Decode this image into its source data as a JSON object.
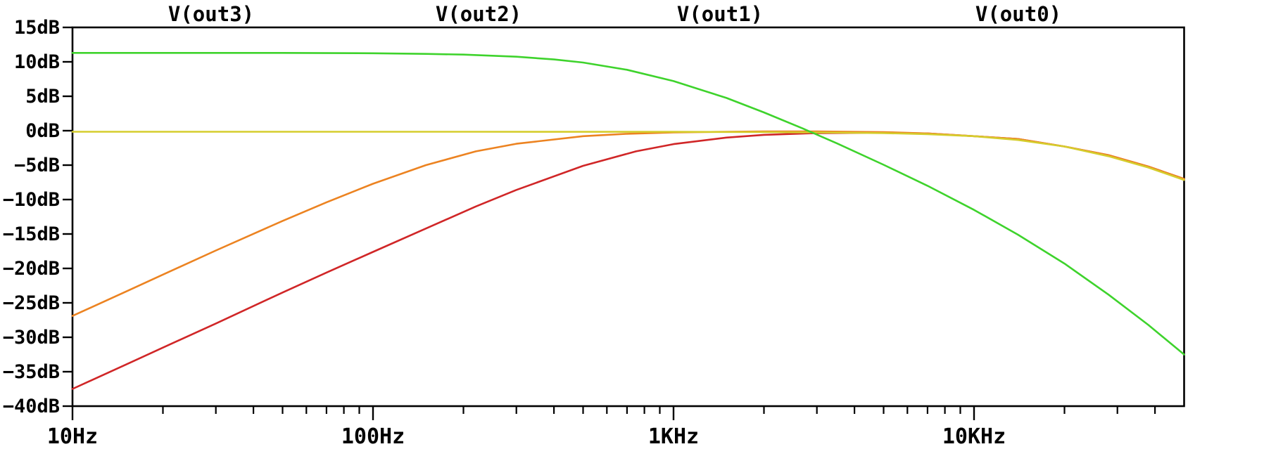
{
  "chart_data": {
    "type": "line",
    "title": "",
    "xlabel": "",
    "ylabel": "",
    "grid": false,
    "legend_position": "top",
    "x_axis": {
      "scale": "log",
      "min_hz": 10,
      "max_hz": 50000,
      "major_ticks": [
        {
          "hz": 10,
          "label": "10Hz"
        },
        {
          "hz": 100,
          "label": "100Hz"
        },
        {
          "hz": 1000,
          "label": "1KHz"
        },
        {
          "hz": 10000,
          "label": "10KHz"
        }
      ]
    },
    "y_axis": {
      "unit": "dB",
      "min": -40,
      "max": 15,
      "step": 5,
      "tick_labels": [
        "15dB",
        "10dB",
        "5dB",
        "0dB",
        "−5dB",
        "−10dB",
        "−15dB",
        "−20dB",
        "−25dB",
        "−30dB",
        "−35dB",
        "−40dB"
      ]
    },
    "legend": [
      {
        "label": "V(out3)",
        "color": "#d02627"
      },
      {
        "label": "V(out2)",
        "color": "#ec8321"
      },
      {
        "label": "V(out1)",
        "color": "#d5cd2d"
      },
      {
        "label": "V(out0)",
        "color": "#3ed32c"
      }
    ],
    "series": [
      {
        "name": "V(out3)",
        "color": "#d02627",
        "points": [
          [
            10,
            -37.5
          ],
          [
            15,
            -34.0
          ],
          [
            20,
            -31.5
          ],
          [
            30,
            -28.0
          ],
          [
            50,
            -23.5
          ],
          [
            70,
            -20.6
          ],
          [
            100,
            -17.6
          ],
          [
            150,
            -14.2
          ],
          [
            220,
            -11.0
          ],
          [
            300,
            -8.6
          ],
          [
            500,
            -5.1
          ],
          [
            750,
            -3.0
          ],
          [
            1000,
            -1.95
          ],
          [
            1500,
            -1.0
          ],
          [
            2000,
            -0.6
          ],
          [
            3000,
            -0.35
          ],
          [
            5000,
            -0.3
          ],
          [
            7000,
            -0.4
          ],
          [
            10000,
            -0.8
          ],
          [
            14000,
            -1.2
          ],
          [
            20000,
            -2.3
          ],
          [
            28000,
            -3.55
          ],
          [
            38000,
            -5.2
          ],
          [
            50000,
            -7.0
          ]
        ]
      },
      {
        "name": "V(out2)",
        "color": "#ec8321",
        "points": [
          [
            10,
            -26.9
          ],
          [
            15,
            -23.4
          ],
          [
            20,
            -20.9
          ],
          [
            30,
            -17.4
          ],
          [
            50,
            -13.1
          ],
          [
            70,
            -10.4
          ],
          [
            100,
            -7.7
          ],
          [
            150,
            -5.0
          ],
          [
            220,
            -3.0
          ],
          [
            300,
            -1.9
          ],
          [
            500,
            -0.8
          ],
          [
            700,
            -0.45
          ],
          [
            1000,
            -0.25
          ],
          [
            1500,
            -0.15
          ],
          [
            2000,
            -0.1
          ],
          [
            3000,
            -0.1
          ],
          [
            5000,
            -0.2
          ],
          [
            7000,
            -0.4
          ],
          [
            10000,
            -0.8
          ],
          [
            14000,
            -1.2
          ],
          [
            20000,
            -2.3
          ],
          [
            28000,
            -3.55
          ],
          [
            38000,
            -5.2
          ],
          [
            50000,
            -7.0
          ]
        ]
      },
      {
        "name": "V(out1)",
        "color": "#d5cd2d",
        "points": [
          [
            10,
            -0.15
          ],
          [
            50,
            -0.15
          ],
          [
            200,
            -0.15
          ],
          [
            1000,
            -0.16
          ],
          [
            2000,
            -0.2
          ],
          [
            3000,
            -0.25
          ],
          [
            5000,
            -0.35
          ],
          [
            7000,
            -0.5
          ],
          [
            10000,
            -0.8
          ],
          [
            14000,
            -1.35
          ],
          [
            20000,
            -2.3
          ],
          [
            28000,
            -3.7
          ],
          [
            38000,
            -5.35
          ],
          [
            50000,
            -7.15
          ]
        ]
      },
      {
        "name": "V(out0)",
        "color": "#3ed32c",
        "points": [
          [
            10,
            11.3
          ],
          [
            50,
            11.3
          ],
          [
            100,
            11.25
          ],
          [
            150,
            11.15
          ],
          [
            200,
            11.05
          ],
          [
            300,
            10.75
          ],
          [
            400,
            10.35
          ],
          [
            500,
            9.9
          ],
          [
            700,
            8.85
          ],
          [
            1000,
            7.2
          ],
          [
            1500,
            4.75
          ],
          [
            2000,
            2.65
          ],
          [
            2700,
            0.3
          ],
          [
            3500,
            -1.85
          ],
          [
            5000,
            -4.95
          ],
          [
            7000,
            -8.0
          ],
          [
            10000,
            -11.5
          ],
          [
            14000,
            -15.1
          ],
          [
            20000,
            -19.3
          ],
          [
            28000,
            -23.8
          ],
          [
            38000,
            -28.2
          ],
          [
            50000,
            -32.5
          ]
        ]
      }
    ]
  }
}
